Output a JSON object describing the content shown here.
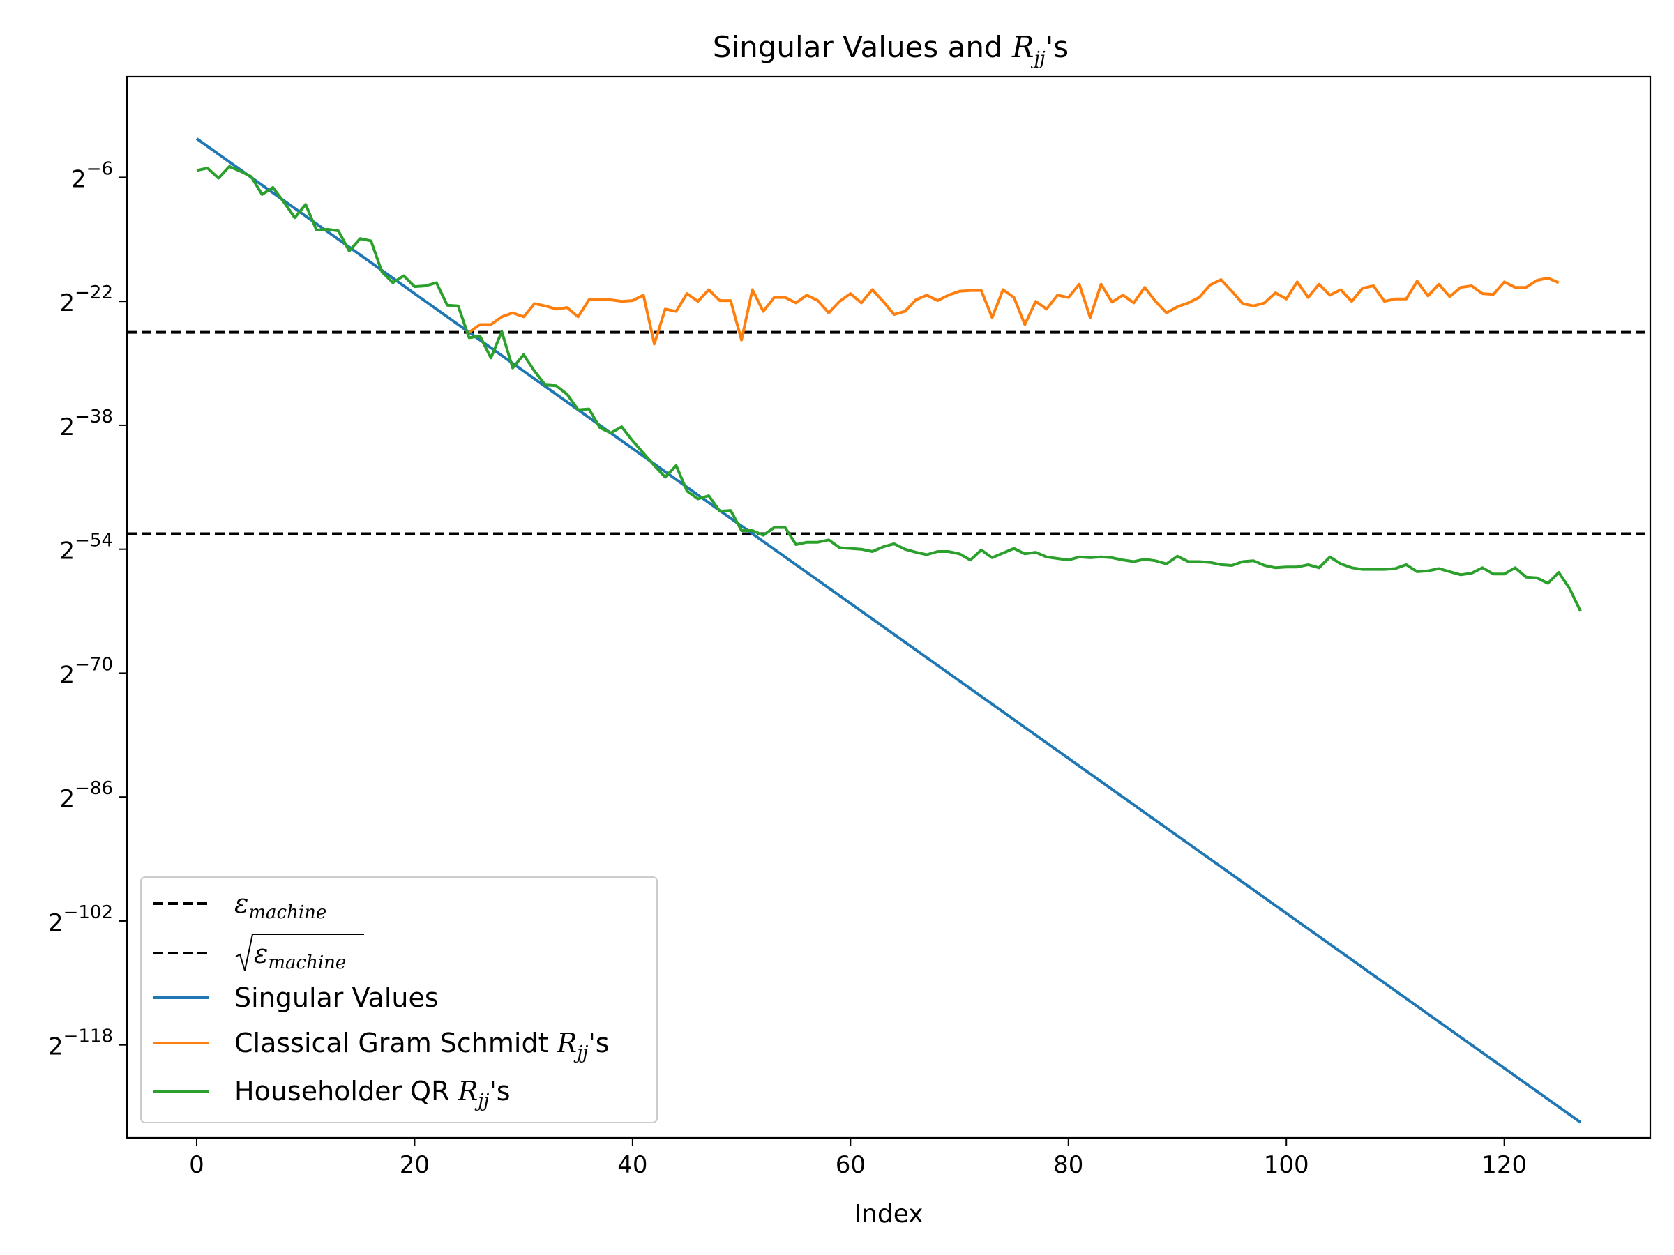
{
  "chart_data": {
    "type": "line",
    "title": "Singular Values and R_jj's",
    "title_parts": {
      "prefix": "Singular Values and ",
      "symbol": "R",
      "subscript": "jj",
      "suffix": "'s"
    },
    "xlabel": "Index",
    "ylabel": "",
    "y_scale": "log2",
    "xlim": [
      -6.4,
      133.4
    ],
    "ylim_exponent": [
      -130,
      7
    ],
    "x_ticks": [
      0,
      20,
      40,
      60,
      80,
      100,
      120
    ],
    "y_tick_exponents": [
      -6,
      -22,
      -38,
      -54,
      -70,
      -86,
      -102,
      -118
    ],
    "y_tick_base": "2",
    "grid": false,
    "legend_position": "lower-left",
    "reference_lines": [
      {
        "name": "ε_machine",
        "symbol": "ε",
        "subscript": "machine",
        "y_exponent": -52,
        "style": "dashed",
        "color": "#000000"
      },
      {
        "name": "√ε_machine",
        "symbol": "ε",
        "subscript": "machine",
        "sqrt": true,
        "y_exponent": -26,
        "style": "dashed",
        "color": "#000000"
      }
    ],
    "series": [
      {
        "name": "Singular Values",
        "color": "#1f77b4",
        "x_start": 0,
        "x_end": 127,
        "y_exponent_start": -1,
        "y_exponent_end": -128
      },
      {
        "name": "Classical Gram Schmidt R_jj's",
        "label_parts": {
          "prefix": "Classical Gram Schmidt ",
          "symbol": "R",
          "subscript": "jj",
          "suffix": "'s"
        },
        "color": "#ff7f0e",
        "x_start": 25,
        "y_exponents": [
          -26.0,
          -25.0,
          -25.0,
          -24.0,
          -23.5,
          -24.0,
          -22.3,
          -22.6,
          -23.0,
          -22.8,
          -24.0,
          -21.8,
          -21.8,
          -21.8,
          -22.0,
          -21.9,
          -21.2,
          -27.5,
          -23.0,
          -23.3,
          -21.0,
          -22.0,
          -20.5,
          -21.9,
          -21.9,
          -27.0,
          -20.5,
          -23.3,
          -21.5,
          -21.5,
          -22.2,
          -21.2,
          -21.9,
          -23.5,
          -22.0,
          -21.0,
          -22.2,
          -20.5,
          -22.0,
          -23.7,
          -23.3,
          -21.8,
          -21.2,
          -21.9,
          -21.2,
          -20.7,
          -20.6,
          -20.6,
          -24.1,
          -20.5,
          -21.5,
          -25.0,
          -22.0,
          -23.0,
          -21.2,
          -21.5,
          -19.8,
          -24.1,
          -19.8,
          -22.1,
          -21.2,
          -22.2,
          -20.2,
          -22.0,
          -23.5,
          -22.7,
          -22.2,
          -21.5,
          -19.9,
          -19.2,
          -20.7,
          -22.3,
          -22.6,
          -22.2,
          -20.9,
          -21.7,
          -19.5,
          -21.5,
          -19.8,
          -21.2,
          -20.5,
          -22.0,
          -20.3,
          -20.0,
          -22.0,
          -21.7,
          -21.7,
          -19.4,
          -21.3,
          -19.8,
          -21.4,
          -20.2,
          -20.0,
          -21.0,
          -21.1,
          -19.5,
          -20.2,
          -20.2,
          -19.3,
          -19.0,
          -19.6
        ]
      },
      {
        "name": "Householder QR R_jj's",
        "label_parts": {
          "prefix": "Householder QR ",
          "symbol": "R",
          "subscript": "jj",
          "suffix": "'s"
        },
        "color": "#2ca02c",
        "x_start": 0,
        "y_exponents": [
          -5.1,
          -4.8,
          -6.1,
          -4.6,
          -5.2,
          -5.9,
          -8.2,
          -7.3,
          -9.2,
          -11.2,
          -9.5,
          -12.8,
          -12.7,
          -12.9,
          -15.5,
          -13.9,
          -14.2,
          -18.2,
          -19.6,
          -18.7,
          -20.1,
          -20.0,
          -19.6,
          -22.5,
          -22.6,
          -26.7,
          -26.5,
          -29.3,
          -25.9,
          -30.6,
          -28.9,
          -31.0,
          -32.8,
          -32.9,
          -34.0,
          -36.0,
          -35.9,
          -38.3,
          -39.0,
          -38.2,
          -40.0,
          -41.6,
          -43.2,
          -44.7,
          -43.2,
          -46.5,
          -47.5,
          -47.1,
          -49.1,
          -49.0,
          -51.6,
          -51.6,
          -52.2,
          -51.2,
          -51.2,
          -53.4,
          -53.1,
          -53.1,
          -52.8,
          -53.8,
          -53.9,
          -54.0,
          -54.3,
          -53.7,
          -53.3,
          -54.0,
          -54.4,
          -54.7,
          -54.3,
          -54.3,
          -54.6,
          -55.4,
          -54.1,
          -55.1,
          -54.5,
          -53.9,
          -54.6,
          -54.4,
          -55.0,
          -55.2,
          -55.4,
          -55.0,
          -55.1,
          -55.0,
          -55.1,
          -55.4,
          -55.6,
          -55.3,
          -55.5,
          -55.9,
          -54.9,
          -55.6,
          -55.6,
          -55.7,
          -56.0,
          -56.1,
          -55.6,
          -55.5,
          -56.1,
          -56.4,
          -56.3,
          -56.3,
          -56.0,
          -56.4,
          -55.0,
          -55.9,
          -56.4,
          -56.6,
          -56.6,
          -56.6,
          -56.5,
          -56.0,
          -56.9,
          -56.8,
          -56.5,
          -56.9,
          -57.3,
          -57.1,
          -56.4,
          -57.2,
          -57.2,
          -56.4,
          -57.6,
          -57.7,
          -58.4,
          -57.0,
          -59.1,
          -62.0
        ]
      }
    ]
  }
}
